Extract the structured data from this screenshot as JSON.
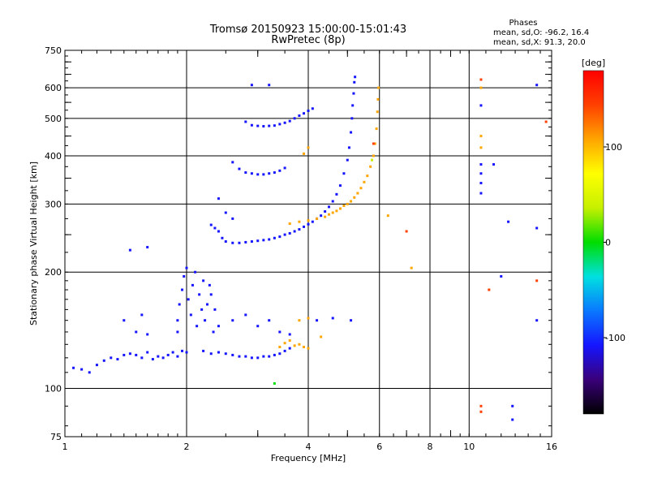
{
  "chart_data": {
    "type": "scatter",
    "title": "Tromsø 20150923 15:00:00-15:01:43",
    "subtitle": "RwPretec (8p)",
    "xlabel": "Frequency [MHz]",
    "ylabel": "Stationary phase Virtual Height [km]",
    "x_scale": "log",
    "y_scale": "log",
    "xlim": [
      1,
      16
    ],
    "ylim": [
      75,
      750
    ],
    "x_ticks": [
      1,
      2,
      4,
      6,
      8,
      10,
      16
    ],
    "x_tick_labels": [
      "1",
      "2",
      "4",
      "6",
      "8",
      "10",
      "16"
    ],
    "x_minor_ticks": [
      3,
      5,
      7,
      9
    ],
    "y_ticks": [
      75,
      100,
      200,
      300,
      400,
      500,
      600,
      750
    ],
    "y_tick_labels": [
      "75",
      "100",
      "200",
      "300",
      "400",
      "500",
      "600",
      "750"
    ],
    "y_minor_ticks": [
      250,
      350,
      450,
      550,
      650,
      700
    ],
    "grid": true,
    "info_panel": {
      "heading": "Phases",
      "line1": "mean, sd,O: -96.2, 16.4",
      "line2": "mean, sd,X:  91.3, 20.0"
    },
    "colorbar": {
      "label": "[deg]",
      "range": [
        -180,
        180
      ],
      "ticks": [
        100,
        0,
        -100
      ],
      "tick_labels": [
        "100",
        "0",
        "-100"
      ],
      "colormap": [
        "#000000",
        "#3a007a",
        "#1515ff",
        "#0a78ff",
        "#00e0e0",
        "#00dd00",
        "#c6f000",
        "#ffff00",
        "#ffa500",
        "#ff4000",
        "#ff0000"
      ]
    },
    "series": [
      {
        "points": [
          [
            1.05,
            113,
            -100
          ],
          [
            1.1,
            112,
            -105
          ],
          [
            1.15,
            110,
            -98
          ],
          [
            1.2,
            115,
            -102
          ],
          [
            1.25,
            118,
            -100
          ],
          [
            1.3,
            120,
            -96
          ],
          [
            1.35,
            119,
            -104
          ],
          [
            1.4,
            122,
            -100
          ],
          [
            1.45,
            123,
            -97
          ],
          [
            1.5,
            122,
            -101
          ],
          [
            1.55,
            120,
            -99
          ],
          [
            1.6,
            124,
            -103
          ],
          [
            1.65,
            119,
            -100
          ],
          [
            1.7,
            121,
            -96
          ],
          [
            1.75,
            120,
            -102
          ],
          [
            1.8,
            122,
            -100
          ],
          [
            1.85,
            124,
            -98
          ],
          [
            1.9,
            121,
            -101
          ],
          [
            1.95,
            125,
            -100
          ],
          [
            2.0,
            124,
            -105
          ],
          [
            1.4,
            150,
            -100
          ],
          [
            1.5,
            140,
            -100
          ],
          [
            1.55,
            155,
            -96
          ],
          [
            1.6,
            138,
            -102
          ],
          [
            1.45,
            228,
            -100
          ],
          [
            1.6,
            232,
            -98
          ]
        ]
      },
      {
        "points": [
          [
            1.9,
            140,
            -98
          ],
          [
            1.9,
            150,
            -100
          ],
          [
            1.92,
            165,
            -102
          ],
          [
            1.95,
            180,
            -99
          ],
          [
            1.97,
            195,
            -101
          ],
          [
            2.0,
            205,
            -100
          ],
          [
            2.02,
            170,
            -97
          ],
          [
            2.05,
            155,
            -103
          ],
          [
            2.07,
            185,
            -100
          ],
          [
            2.1,
            200,
            -98
          ],
          [
            2.12,
            145,
            -102
          ],
          [
            2.15,
            175,
            -100
          ],
          [
            2.18,
            160,
            -96
          ],
          [
            2.2,
            190,
            -101
          ],
          [
            2.22,
            150,
            -99
          ],
          [
            2.25,
            165,
            -100
          ],
          [
            2.28,
            185,
            -104
          ],
          [
            2.3,
            175,
            -100
          ],
          [
            2.33,
            140,
            -98
          ],
          [
            2.35,
            160,
            -101
          ]
        ]
      },
      {
        "points": [
          [
            2.2,
            125,
            -100
          ],
          [
            2.3,
            123,
            -102
          ],
          [
            2.4,
            124,
            -98
          ],
          [
            2.5,
            123,
            -101
          ],
          [
            2.6,
            122,
            -100
          ],
          [
            2.7,
            121,
            -97
          ],
          [
            2.8,
            121,
            -103
          ],
          [
            2.9,
            120,
            -100
          ],
          [
            3.0,
            120,
            -99
          ],
          [
            3.1,
            121,
            -101
          ],
          [
            3.2,
            121,
            -100
          ],
          [
            3.3,
            122,
            -98
          ],
          [
            3.4,
            123,
            -102
          ],
          [
            3.5,
            125,
            -100
          ],
          [
            3.6,
            127,
            -97
          ],
          [
            2.4,
            145,
            -100
          ],
          [
            2.6,
            150,
            -102
          ],
          [
            2.8,
            155,
            -99
          ],
          [
            3.0,
            145,
            -101
          ],
          [
            3.2,
            150,
            -100
          ],
          [
            3.4,
            140,
            -98
          ],
          [
            3.6,
            138,
            -103
          ],
          [
            4.2,
            150,
            -100
          ],
          [
            4.6,
            152,
            -98
          ],
          [
            5.1,
            150,
            -100
          ]
        ]
      },
      {
        "points": [
          [
            3.4,
            128,
            100
          ],
          [
            3.5,
            131,
            98
          ],
          [
            3.6,
            133,
            102
          ],
          [
            3.7,
            129,
            95
          ],
          [
            3.8,
            130,
            100
          ],
          [
            3.9,
            128,
            105
          ],
          [
            4.0,
            127,
            100
          ],
          [
            3.8,
            150,
            90
          ],
          [
            4.0,
            152,
            100
          ],
          [
            4.3,
            136,
            95
          ],
          [
            3.3,
            103,
            5
          ]
        ]
      },
      {
        "points": [
          [
            2.3,
            265,
            -100
          ],
          [
            2.35,
            260,
            -98
          ],
          [
            2.4,
            255,
            -102
          ],
          [
            2.45,
            245,
            -100
          ],
          [
            2.5,
            240,
            -96
          ],
          [
            2.6,
            238,
            -101
          ],
          [
            2.7,
            238,
            -100
          ],
          [
            2.8,
            239,
            -104
          ],
          [
            2.9,
            240,
            -99
          ],
          [
            3.0,
            241,
            -100
          ],
          [
            3.1,
            242,
            -102
          ],
          [
            3.2,
            243,
            -98
          ],
          [
            3.3,
            245,
            -101
          ],
          [
            3.4,
            247,
            -100
          ],
          [
            3.5,
            250,
            -97
          ],
          [
            3.6,
            252,
            -103
          ],
          [
            3.7,
            255,
            -100
          ],
          [
            3.8,
            258,
            -99
          ],
          [
            3.9,
            262,
            -101
          ],
          [
            4.0,
            266,
            -100
          ],
          [
            4.1,
            270,
            -98
          ],
          [
            4.2,
            275,
            -102
          ],
          [
            4.3,
            280,
            -100
          ],
          [
            4.4,
            287,
            -97
          ],
          [
            4.5,
            295,
            -101
          ],
          [
            4.6,
            305,
            -100
          ],
          [
            4.7,
            318,
            -99
          ],
          [
            4.8,
            335,
            -102
          ],
          [
            4.9,
            360,
            -100
          ],
          [
            5.0,
            390,
            -98
          ],
          [
            5.05,
            420,
            -101
          ],
          [
            5.1,
            460,
            -100
          ],
          [
            5.13,
            500,
            -97
          ],
          [
            5.15,
            540,
            -103
          ],
          [
            5.18,
            580,
            -100
          ],
          [
            5.2,
            620,
            -99
          ],
          [
            5.22,
            640,
            -101
          ],
          [
            2.5,
            285,
            -100
          ],
          [
            2.6,
            275,
            -98
          ],
          [
            2.4,
            310,
            -102
          ]
        ]
      },
      {
        "points": [
          [
            3.6,
            267,
            100
          ],
          [
            3.8,
            270,
            95
          ],
          [
            4.0,
            272,
            102
          ],
          [
            4.2,
            275,
            98
          ],
          [
            4.4,
            278,
            100
          ],
          [
            4.5,
            282,
            105
          ],
          [
            4.6,
            285,
            100
          ],
          [
            4.7,
            288,
            96
          ],
          [
            4.8,
            292,
            101
          ],
          [
            4.9,
            297,
            100
          ],
          [
            5.0,
            300,
            98
          ],
          [
            5.1,
            305,
            102
          ],
          [
            5.2,
            312,
            100
          ],
          [
            5.3,
            320,
            97
          ],
          [
            5.4,
            330,
            101
          ],
          [
            5.5,
            342,
            100
          ],
          [
            5.6,
            355,
            99
          ],
          [
            5.7,
            375,
            102
          ],
          [
            5.8,
            400,
            100
          ],
          [
            5.85,
            430,
            98
          ],
          [
            5.9,
            470,
            101
          ],
          [
            5.93,
            520,
            100
          ],
          [
            5.95,
            560,
            97
          ],
          [
            5.97,
            600,
            103
          ],
          [
            4.0,
            420,
            100
          ],
          [
            3.9,
            405,
            95
          ],
          [
            5.75,
            390,
            20
          ]
        ]
      },
      {
        "points": [
          [
            2.6,
            385,
            -100
          ],
          [
            2.7,
            370,
            -102
          ],
          [
            2.8,
            362,
            -98
          ],
          [
            2.9,
            360,
            -101
          ],
          [
            3.0,
            358,
            -100
          ],
          [
            3.1,
            358,
            -97
          ],
          [
            3.2,
            360,
            -103
          ],
          [
            3.3,
            362,
            -100
          ],
          [
            3.4,
            366,
            -99
          ],
          [
            3.5,
            372,
            -101
          ]
        ]
      },
      {
        "points": [
          [
            2.8,
            490,
            -100
          ],
          [
            2.9,
            480,
            -102
          ],
          [
            3.0,
            478,
            -98
          ],
          [
            3.1,
            477,
            -101
          ],
          [
            3.2,
            478,
            -100
          ],
          [
            3.3,
            479,
            -97
          ],
          [
            3.4,
            483,
            -103
          ],
          [
            3.5,
            487,
            -100
          ],
          [
            3.6,
            492,
            -99
          ],
          [
            3.7,
            500,
            -101
          ],
          [
            3.8,
            508,
            -100
          ],
          [
            3.9,
            515,
            -98
          ],
          [
            4.0,
            523,
            -102
          ],
          [
            4.1,
            530,
            -100
          ],
          [
            2.9,
            610,
            -100
          ],
          [
            3.2,
            610,
            -100
          ]
        ]
      },
      {
        "points": [
          [
            10.7,
            630,
            160
          ],
          [
            10.7,
            600,
            120
          ],
          [
            10.7,
            450,
            100
          ],
          [
            10.7,
            420,
            120
          ],
          [
            10.7,
            380,
            -100
          ],
          [
            10.7,
            360,
            -98
          ],
          [
            10.7,
            340,
            -102
          ],
          [
            10.7,
            320,
            -100
          ],
          [
            10.7,
            540,
            -100
          ],
          [
            10.7,
            90,
            150
          ],
          [
            10.7,
            87,
            160
          ],
          [
            12.5,
            270,
            -100
          ],
          [
            12.0,
            195,
            -110
          ],
          [
            12.8,
            90,
            -100
          ],
          [
            12.8,
            83,
            -100
          ],
          [
            14.7,
            610,
            -100
          ],
          [
            14.7,
            260,
            -100
          ],
          [
            14.7,
            190,
            150
          ],
          [
            14.7,
            150,
            -100
          ],
          [
            15.5,
            490,
            150
          ],
          [
            11.5,
            380,
            -100
          ],
          [
            11.2,
            180,
            160
          ],
          [
            7.0,
            255,
            150
          ],
          [
            7.2,
            205,
            100
          ],
          [
            6.3,
            280,
            120
          ],
          [
            5.8,
            430,
            150
          ]
        ]
      }
    ]
  }
}
